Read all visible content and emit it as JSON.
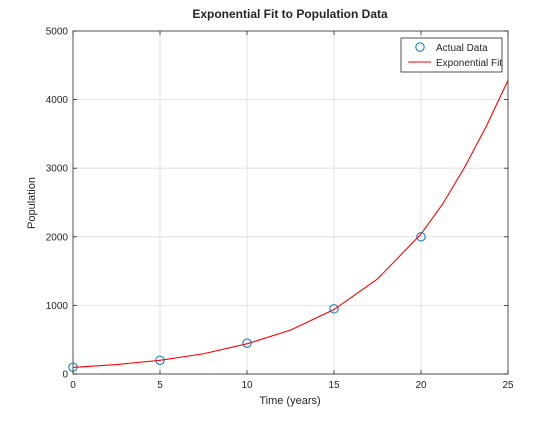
{
  "chart_data": {
    "type": "line",
    "title": "Exponential Fit to Population Data",
    "xlabel": "Time (years)",
    "ylabel": "Population",
    "xlim": [
      0,
      25
    ],
    "ylim": [
      0,
      5000
    ],
    "x_ticks": [
      0,
      5,
      10,
      15,
      20,
      25
    ],
    "y_ticks": [
      0,
      1000,
      2000,
      3000,
      4000,
      5000
    ],
    "grid": true,
    "legend_position": "top-right",
    "series": [
      {
        "name": "Actual Data",
        "kind": "markers",
        "marker": "circle",
        "color": "#0072bd",
        "x": [
          0,
          5,
          10,
          15,
          20
        ],
        "y": [
          100,
          200,
          450,
          950,
          2000
        ]
      },
      {
        "name": "Exponential Fit",
        "kind": "line",
        "color": "#ff0000",
        "x": [
          0,
          2.5,
          5,
          7.5,
          10,
          12.5,
          15,
          17.5,
          20,
          21.25,
          22.5,
          23.75,
          25
        ],
        "y": [
          95,
          138,
          200,
          295,
          440,
          640,
          940,
          1385,
          2040,
          2480,
          3010,
          3610,
          4280
        ]
      }
    ]
  }
}
